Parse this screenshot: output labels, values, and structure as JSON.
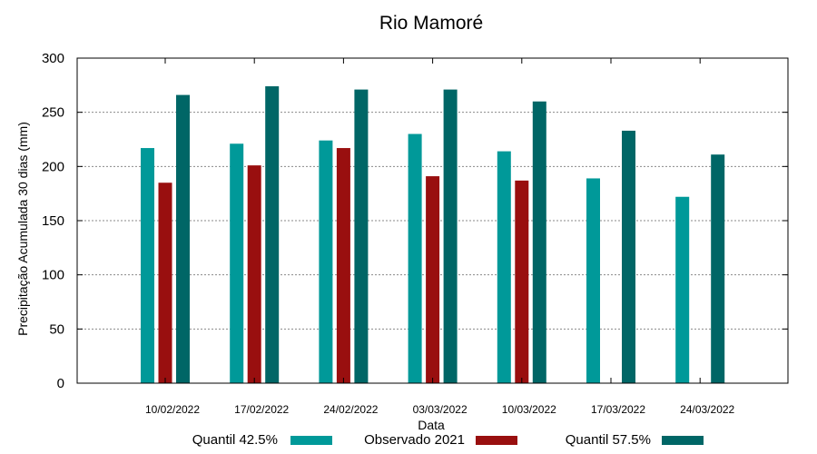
{
  "chart_data": {
    "type": "bar",
    "title": "Rio Mamoré",
    "xlabel": "Data",
    "ylabel": "Precipitação Acumulada 30 dias (mm)",
    "ylim": [
      0,
      300
    ],
    "yticks": [
      "0",
      "50",
      "100",
      "150",
      "200",
      "250",
      "300"
    ],
    "grid": true,
    "legend_position": "bottom",
    "categories": [
      "10/02/2022",
      "17/02/2022",
      "24/02/2022",
      "03/03/2022",
      "10/03/2022",
      "17/03/2022",
      "24/03/2022"
    ],
    "series": [
      {
        "name": "Quantil 42.5%",
        "color": "#009999",
        "values": [
          217,
          221,
          224,
          230,
          214,
          189,
          172
        ]
      },
      {
        "name": "Observado 2021",
        "color": "#990f0f",
        "values": [
          185,
          201,
          217,
          191,
          187,
          null,
          null
        ]
      },
      {
        "name": "Quantil 57.5%",
        "color": "#006666",
        "values": [
          266,
          274,
          271,
          271,
          260,
          233,
          211
        ]
      }
    ]
  }
}
